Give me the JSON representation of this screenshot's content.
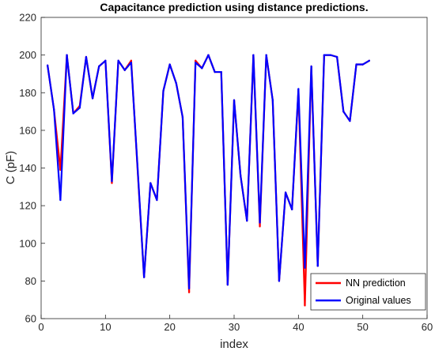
{
  "chart_data": {
    "type": "line",
    "title": "Capacitance prediction using distance predictions.",
    "xlabel": "index",
    "ylabel": "C (pF)",
    "xlim": [
      0,
      60
    ],
    "ylim": [
      60,
      220
    ],
    "xticks": [
      0,
      10,
      20,
      30,
      40,
      50,
      60
    ],
    "yticks": [
      60,
      80,
      100,
      120,
      140,
      160,
      180,
      200,
      220
    ],
    "grid": false,
    "legend_position": "bottom-right",
    "x": [
      1,
      2,
      3,
      4,
      5,
      6,
      7,
      8,
      9,
      10,
      11,
      12,
      13,
      14,
      15,
      16,
      17,
      18,
      19,
      20,
      21,
      22,
      23,
      24,
      25,
      26,
      27,
      28,
      29,
      30,
      31,
      32,
      33,
      34,
      35,
      36,
      37,
      38,
      39,
      40,
      41,
      42,
      43,
      44,
      45,
      46,
      47,
      48,
      49,
      50,
      51
    ],
    "series": [
      {
        "name": "NN prediction",
        "color": "#ff0000",
        "values": [
          194.5,
          171,
          139,
          200,
          169,
          173,
          199,
          177,
          194,
          197,
          132,
          197,
          192,
          197,
          139,
          82,
          132,
          123,
          181,
          195,
          185,
          167,
          74,
          197,
          193,
          200,
          191,
          191,
          78,
          176,
          136,
          112,
          200,
          109,
          200,
          176,
          80,
          127,
          118,
          181,
          67,
          194,
          88,
          200,
          200,
          199,
          170,
          165,
          195,
          195,
          197
        ]
      },
      {
        "name": "Original values",
        "color": "#0000ff",
        "values": [
          194.5,
          171,
          123,
          200,
          169,
          172,
          199,
          177,
          194,
          197,
          133,
          197,
          192,
          196,
          140,
          82,
          132,
          123,
          181,
          195,
          185,
          167,
          76,
          196,
          193,
          200,
          191,
          191,
          78,
          176,
          136,
          112,
          200,
          111,
          200,
          176,
          80,
          127,
          118,
          182,
          87,
          194,
          88,
          200,
          200,
          199,
          170,
          165,
          195,
          195,
          197
        ]
      }
    ]
  }
}
